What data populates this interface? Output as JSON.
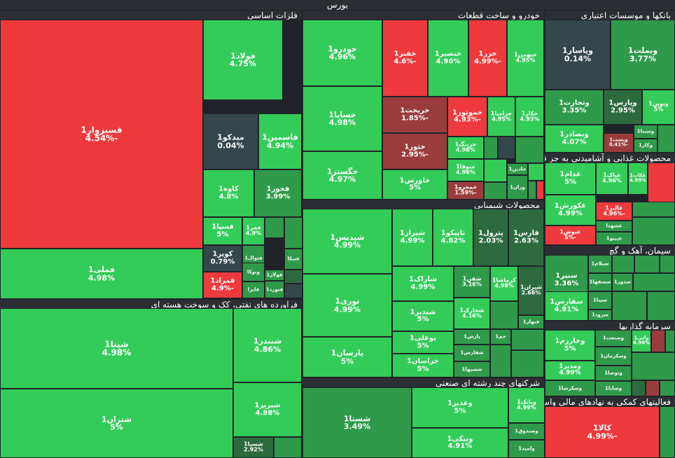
{
  "title": "بورس",
  "colors": {
    "up_strong": "#33cc59",
    "up_mid": "#2f9a4a",
    "up_dark": "#2d6b3e",
    "flat": "#34474a",
    "down_mid": "#9a3c3d",
    "down_strong": "#ee3a3d"
  },
  "chart_data": {
    "type": "treemap",
    "title": "بورس",
    "sectors": [
      {
        "name": "فلزات اساسی",
        "symbols": [
          {
            "symbol": "فسبزوار1",
            "change": "-4.54%"
          },
          {
            "symbol": "فولاد1",
            "change": "4.75%"
          },
          {
            "symbol": "میدکو1",
            "change": "0.04%"
          },
          {
            "symbol": "فاسمین1",
            "change": "4.94%"
          },
          {
            "symbol": "کاوه1",
            "change": "4.8%"
          },
          {
            "symbol": "فخوز1",
            "change": "3.99%"
          },
          {
            "symbol": "فسپا1",
            "change": "5%"
          },
          {
            "symbol": "فجر1",
            "change": "4.9%"
          },
          {
            "symbol": "کویر1",
            "change": "0.79%"
          },
          {
            "symbol": "فتوال1",
            "change": ""
          },
          {
            "symbol": "فنیکا",
            "change": ""
          },
          {
            "symbol": "فمراد1",
            "change": "-4.9%"
          },
          {
            "symbol": "فولاژ1",
            "change": ""
          },
          {
            "symbol": "ونوکا",
            "change": ""
          },
          {
            "symbol": "فایرا",
            "change": ""
          },
          {
            "symbol": "فنورد1",
            "change": ""
          },
          {
            "symbol": "فملی1",
            "change": "4.98%"
          }
        ]
      },
      {
        "name": "فراورده های نفتی، کک و سوخت هسته ای",
        "symbols": [
          {
            "symbol": "شپنا1",
            "change": "4.98%"
          },
          {
            "symbol": "شبندر1",
            "change": "4.86%"
          },
          {
            "symbol": "شتران1",
            "change": "5%"
          },
          {
            "symbol": "شبریز1",
            "change": "4.98%"
          },
          {
            "symbol": "شسپا1",
            "change": "2.92%"
          }
        ]
      },
      {
        "name": "خودرو و ساخت قطعات",
        "symbols": [
          {
            "symbol": "خودرو1",
            "change": "4.96%"
          },
          {
            "symbol": "خفنر1",
            "change": "-4.6%"
          },
          {
            "symbol": "خنصیر1",
            "change": "4.96%"
          },
          {
            "symbol": "خزر1",
            "change": "-4.99%"
          },
          {
            "symbol": "خبهمن1",
            "change": "4.95%"
          },
          {
            "symbol": "خساپا1",
            "change": "4.98%"
          },
          {
            "symbol": "خریخت1",
            "change": "-1.85%"
          },
          {
            "symbol": "خموتور1",
            "change": "-4.93%"
          },
          {
            "symbol": "خزامیا1",
            "change": "4.95%"
          },
          {
            "symbol": "خکار1",
            "change": "4.93%"
          },
          {
            "symbol": "ختور1",
            "change": "-2.95%"
          },
          {
            "symbol": "خرینگ1",
            "change": "4.98%"
          },
          {
            "symbol": "خگستر1",
            "change": "4.97%"
          },
          {
            "symbol": "خاورس1",
            "change": "5%"
          },
          {
            "symbol": "ختوقا1",
            "change": "4.96%"
          },
          {
            "symbol": "خاذین1",
            "change": ""
          },
          {
            "symbol": "خمحرو1",
            "change": "-1.59%"
          },
          {
            "symbol": "وران1",
            "change": ""
          }
        ]
      },
      {
        "name": "بانکها و موسسات اعتباری",
        "symbols": [
          {
            "symbol": "وپاسار1",
            "change": "0.14%"
          },
          {
            "symbol": "وبملت1",
            "change": "3.77%"
          },
          {
            "symbol": "وتجارت1",
            "change": "3.35%"
          },
          {
            "symbol": "وپارس1",
            "change": "2.95%"
          },
          {
            "symbol": "ونوین1",
            "change": "5%"
          },
          {
            "symbol": "وبصادر1",
            "change": "4.07%"
          },
          {
            "symbol": "وسینا1",
            "change": ""
          },
          {
            "symbol": "وپست1",
            "change": "-0.41%"
          },
          {
            "symbol": "وکار1",
            "change": ""
          }
        ]
      },
      {
        "name": "محصولات غذایی و آشامیدنی به جز قند",
        "symbols": [
          {
            "symbol": "غدام1",
            "change": "5%"
          },
          {
            "symbol": "غپاک1",
            "change": "4.96%"
          },
          {
            "symbol": "غکاب1",
            "change": "4.99%"
          },
          {
            "symbol": "غکورش1",
            "change": "4.99%"
          },
          {
            "symbol": "غالبر1",
            "change": "-4.96%"
          },
          {
            "symbol": "غشهدا",
            "change": ""
          },
          {
            "symbol": "غنوش1",
            "change": "-5%"
          },
          {
            "symbol": "غپینو1",
            "change": ""
          }
        ]
      },
      {
        "name": "محصولات شیمیایی",
        "symbols": [
          {
            "symbol": "شپدیس1",
            "change": "4.99%"
          },
          {
            "symbol": "شیراز1",
            "change": "4.99%"
          },
          {
            "symbol": "تاپیکو1",
            "change": "4.82%"
          },
          {
            "symbol": "پترول1",
            "change": "2.03%"
          },
          {
            "symbol": "فارس1",
            "change": "2.63%"
          },
          {
            "symbol": "شاراک1",
            "change": "4.99%"
          },
          {
            "symbol": "شفن1",
            "change": "3.16%"
          },
          {
            "symbol": "کرماشا1",
            "change": "4.98%"
          },
          {
            "symbol": "شیران1",
            "change": "2.66%"
          },
          {
            "symbol": "نوری1",
            "change": "4.99%"
          },
          {
            "symbol": "شندیر1",
            "change": "5%"
          },
          {
            "symbol": "شخارک1",
            "change": "4.16%"
          },
          {
            "symbol": "فبهار1",
            "change": ""
          },
          {
            "symbol": "بوعلی1",
            "change": "5%"
          },
          {
            "symbol": "پارس1",
            "change": ""
          },
          {
            "symbol": "جم1",
            "change": ""
          },
          {
            "symbol": "پارسان1",
            "change": "5%"
          },
          {
            "symbol": "خراسان1",
            "change": "5%"
          },
          {
            "symbol": "شفارس1",
            "change": ""
          },
          {
            "symbol": "شسپها1",
            "change": ""
          }
        ]
      },
      {
        "name": "سیمان، آهک و گچ",
        "symbols": [
          {
            "symbol": "سیلام1",
            "change": ""
          },
          {
            "symbol": "سنیر1",
            "change": "3.36%"
          },
          {
            "symbol": "سصفها1",
            "change": ""
          },
          {
            "symbol": "سدور1",
            "change": ""
          },
          {
            "symbol": "سپنا1",
            "change": ""
          },
          {
            "symbol": "سفارس1",
            "change": "4.91%"
          },
          {
            "symbol": "سرود1",
            "change": ""
          }
        ]
      },
      {
        "name": "سرمایه گذاریها",
        "symbols": [
          {
            "symbol": "وخارزم1",
            "change": "5%"
          },
          {
            "symbol": "وصنعت1",
            "change": ""
          },
          {
            "symbol": "واتی1",
            "change": "4.96%"
          },
          {
            "symbol": "وسکرمان1",
            "change": ""
          },
          {
            "symbol": "ومدیر1",
            "change": "4.99%"
          },
          {
            "symbol": "وتوصا1",
            "change": ""
          },
          {
            "symbol": "وسکرشا1",
            "change": ""
          },
          {
            "symbol": "وساپا1",
            "change": ""
          }
        ]
      },
      {
        "name": "شرکتهای چند رشته ای صنعتی",
        "symbols": [
          {
            "symbol": "شستا1",
            "change": "3.49%"
          },
          {
            "symbol": "وغدیر1",
            "change": "5%"
          },
          {
            "symbol": "ونیکی1",
            "change": "4.91%"
          },
          {
            "symbol": "وبانک1",
            "change": "4.99%"
          },
          {
            "symbol": "وصندوق1",
            "change": ""
          },
          {
            "symbol": "ولمید1",
            "change": ""
          }
        ]
      },
      {
        "name": "فعالیتهای کمکی به نهادهای مالی واسط",
        "symbols": [
          {
            "symbol": "کالا1",
            "change": "-4.99%"
          }
        ]
      }
    ]
  }
}
